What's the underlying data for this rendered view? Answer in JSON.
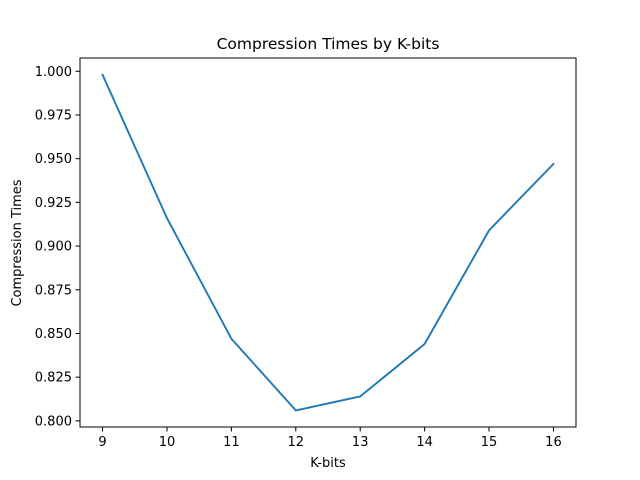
{
  "chart_data": {
    "type": "line",
    "title": "Compression Times by K-bits",
    "xlabel": "K-bits",
    "ylabel": "Compression Times",
    "x": [
      9,
      10,
      11,
      12,
      13,
      14,
      15,
      16
    ],
    "series": [
      {
        "values": [
          0.998,
          0.916,
          0.847,
          0.806,
          0.814,
          0.844,
          0.909,
          0.947
        ],
        "color": "#1f77b4"
      }
    ],
    "xticks": [
      9,
      10,
      11,
      12,
      13,
      14,
      15,
      16
    ],
    "xtick_labels": [
      "9",
      "10",
      "11",
      "12",
      "13",
      "14",
      "15",
      "16"
    ],
    "yticks": [
      0.8,
      0.825,
      0.85,
      0.875,
      0.9,
      0.925,
      0.95,
      0.975,
      1.0
    ],
    "ytick_labels": [
      "0.800",
      "0.825",
      "0.850",
      "0.875",
      "0.900",
      "0.925",
      "0.950",
      "0.975",
      "1.000"
    ],
    "xlim": [
      8.65,
      16.35
    ],
    "ylim": [
      0.7965,
      1.0076
    ],
    "grid": false,
    "legend": "none"
  }
}
